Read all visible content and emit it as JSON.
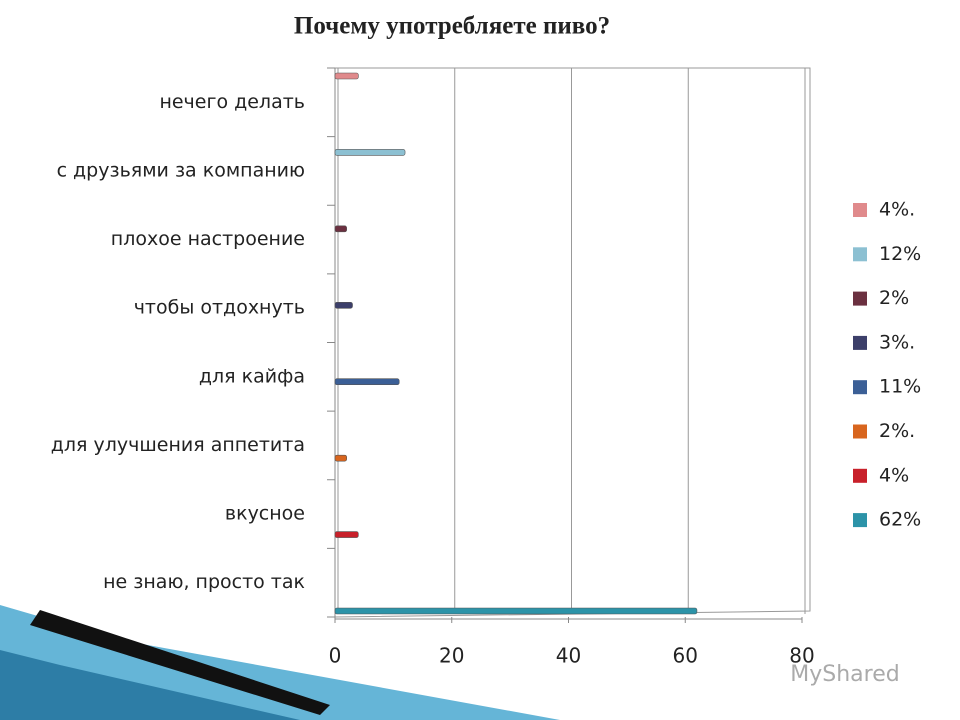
{
  "chart_data": {
    "type": "bar",
    "orientation": "horizontal",
    "title": "Почему употребляете пиво?",
    "categories": [
      "нечего делать",
      "с друзьями за компанию",
      "плохое настроение",
      "чтобы отдохнуть",
      "для кайфа",
      "для улучшения аппетита",
      "вкусное",
      "не знаю, просто так"
    ],
    "series": [
      {
        "name": "4%.",
        "color": "#e08a8c",
        "values": [
          4,
          null,
          null,
          null,
          null,
          null,
          null,
          null
        ]
      },
      {
        "name": "12%",
        "color": "#8cc0d2",
        "values": [
          null,
          12,
          null,
          null,
          null,
          null,
          null,
          null
        ]
      },
      {
        "name": "2%",
        "color": "#6b3040",
        "values": [
          null,
          null,
          2,
          null,
          null,
          null,
          null,
          null
        ]
      },
      {
        "name": "3%.",
        "color": "#3c3f6a",
        "values": [
          null,
          null,
          null,
          3,
          null,
          null,
          null,
          null
        ]
      },
      {
        "name": "11%",
        "color": "#3b5f96",
        "values": [
          null,
          null,
          null,
          null,
          11,
          null,
          null,
          null
        ]
      },
      {
        "name": "2%.",
        "color": "#d8651e",
        "values": [
          null,
          null,
          null,
          null,
          null,
          2,
          null,
          null
        ]
      },
      {
        "name": "4%",
        "color": "#c8202a",
        "values": [
          null,
          null,
          null,
          null,
          null,
          null,
          4,
          null
        ]
      },
      {
        "name": "62%",
        "color": "#2c93a8",
        "values": [
          null,
          null,
          null,
          null,
          null,
          null,
          null,
          62
        ]
      }
    ],
    "xlim": [
      0,
      80
    ],
    "xticks": [
      0,
      20,
      40,
      60,
      80
    ],
    "grid": true,
    "legend": "right"
  },
  "watermark": "MyShared"
}
